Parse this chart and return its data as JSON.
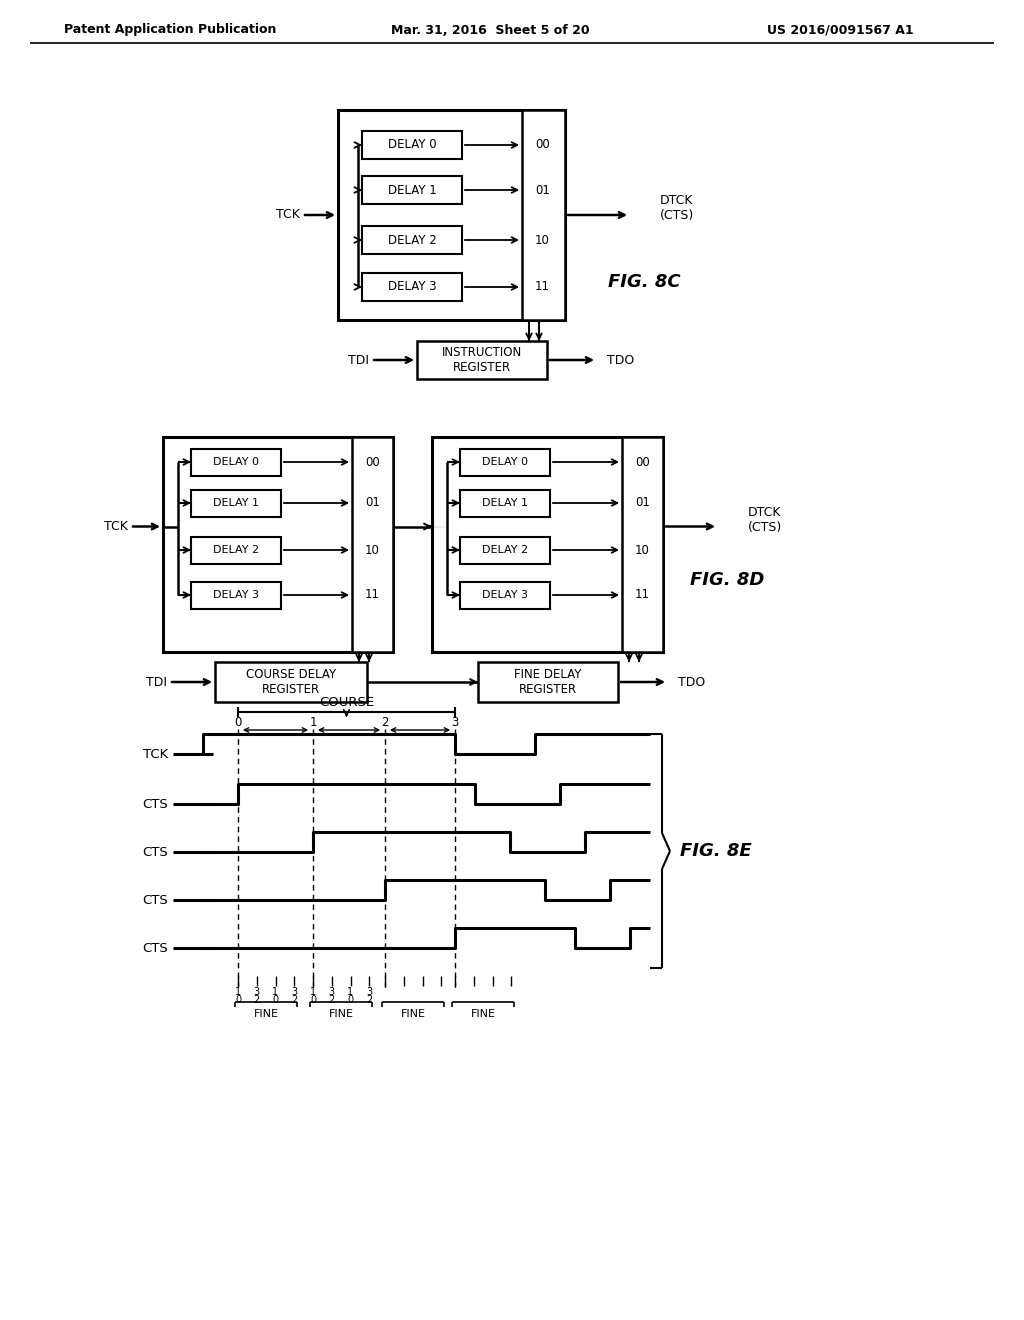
{
  "bg_color": "#ffffff",
  "header_left": "Patent Application Publication",
  "header_mid": "Mar. 31, 2016  Sheet 5 of 20",
  "header_right": "US 2016/0091567 A1",
  "fig8c": {
    "label": "FIG. 8C",
    "delays": [
      "DELAY 0",
      "DELAY 1",
      "DELAY 2",
      "DELAY 3"
    ],
    "codes": [
      "00",
      "01",
      "10",
      "11"
    ],
    "tck_label": "TCK",
    "out_label": "DTCK\n(CTS)",
    "instr_box_label": "INSTRUCTION\nREGISTER",
    "tdi_label": "TDI",
    "tdo_label": "TDO"
  },
  "fig8d": {
    "label": "FIG. 8D",
    "delays": [
      "DELAY 0",
      "DELAY 1",
      "DELAY 2",
      "DELAY 3"
    ],
    "codes": [
      "00",
      "01",
      "10",
      "11"
    ],
    "tck_label": "TCK",
    "out_label": "DTCK\n(CTS)",
    "course_reg_label": "COURSE DELAY\nREGISTER",
    "fine_reg_label": "FINE DELAY\nREGISTER",
    "tdi_label": "TDI",
    "tdo_label": "TDO"
  },
  "fig8e": {
    "label": "FIG. 8E",
    "signals": [
      "TCK",
      "CTS",
      "CTS",
      "CTS",
      "CTS"
    ],
    "course_label": "COURSE",
    "fine_labels": [
      "FINE",
      "FINE",
      "FINE",
      "FINE"
    ],
    "tick_labels_top": [
      "0",
      "1",
      "2",
      "3"
    ],
    "tick_labels_bottom_row1": [
      "1",
      "3",
      "1",
      "3",
      "1",
      "3",
      "1",
      "3"
    ],
    "tick_labels_bottom_row2": [
      "0",
      "2",
      "0",
      "2",
      "0",
      "2",
      "0",
      "2"
    ]
  }
}
